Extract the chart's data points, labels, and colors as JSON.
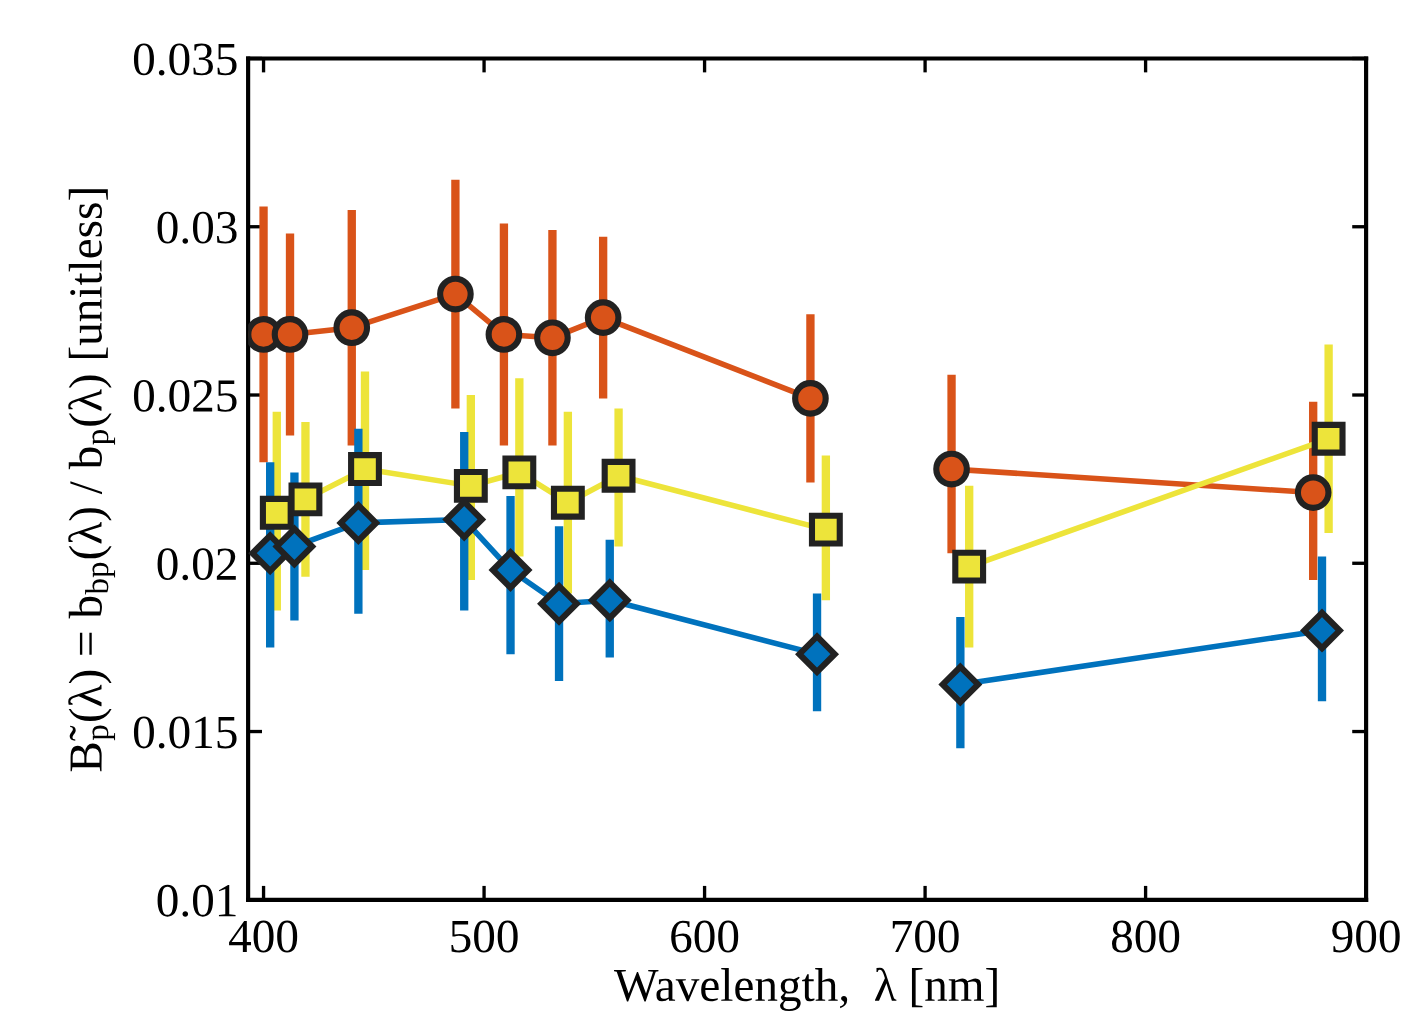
{
  "chart_data": {
    "type": "line",
    "xlabel": "Wavelength,  λ [nm]",
    "ylabel": "B̃$_{p}$(λ) = b$_{bp}$(λ) / b$_{p}$(λ) [unitless]",
    "xlim": [
      393,
      900
    ],
    "xticks": [
      400,
      500,
      600,
      700,
      800,
      900
    ],
    "ylim": [
      0.01,
      0.035
    ],
    "yticks": [
      0.01,
      0.015,
      0.02,
      0.025,
      0.03,
      0.035
    ],
    "grid": false,
    "legend": false,
    "line_style": "solid",
    "series": [
      {
        "color": "#d95319",
        "marker": "circle",
        "x": [
          400,
          412,
          440,
          487,
          509,
          531,
          554,
          648,
          680,
          712,
          876
        ],
        "values": [
          0.0268,
          0.0268,
          0.027,
          0.028,
          0.0268,
          0.0267,
          0.0273,
          0.0249,
          null,
          0.0228,
          0.0221
        ],
        "errors": [
          [
            0.023,
            0.0306
          ],
          [
            0.0238,
            0.0298
          ],
          [
            0.0235,
            0.0305
          ],
          [
            0.0246,
            0.0314
          ],
          [
            0.0235,
            0.0301
          ],
          [
            0.0235,
            0.0299
          ],
          [
            0.0249,
            0.0297
          ],
          [
            0.0224,
            0.0274
          ],
          null,
          [
            0.0203,
            0.0256
          ],
          [
            0.0195,
            0.0248
          ]
        ]
      },
      {
        "color": "#ede43a",
        "marker": "square",
        "x": [
          406,
          419,
          446,
          494,
          516,
          538,
          561,
          655,
          688,
          720,
          883
        ],
        "values": [
          0.0215,
          0.0219,
          0.0228,
          0.0223,
          0.0227,
          0.0218,
          0.0226,
          0.021,
          null,
          0.0199,
          0.0237
        ],
        "errors": [
          [
            0.0186,
            0.0245
          ],
          [
            0.0196,
            0.0242
          ],
          [
            0.0198,
            0.0257
          ],
          [
            0.0195,
            0.025
          ],
          [
            0.0202,
            0.0255
          ],
          [
            0.0191,
            0.0245
          ],
          [
            0.0205,
            0.0246
          ],
          [
            0.0189,
            0.0232
          ],
          null,
          [
            0.0175,
            0.0223
          ],
          [
            0.0209,
            0.0265
          ]
        ]
      },
      {
        "color": "#0072bd",
        "marker": "diamond",
        "x": [
          403,
          414,
          443,
          491,
          512,
          534,
          557,
          651,
          684,
          716,
          880
        ],
        "values": [
          0.0203,
          0.0205,
          0.0212,
          0.0213,
          0.0198,
          0.0188,
          0.0189,
          0.0173,
          null,
          0.0164,
          0.018
        ],
        "errors": [
          [
            0.0175,
            0.023
          ],
          [
            0.0183,
            0.0227
          ],
          [
            0.0185,
            0.024
          ],
          [
            0.0186,
            0.0239
          ],
          [
            0.0173,
            0.022
          ],
          [
            0.0165,
            0.0211
          ],
          [
            0.0172,
            0.0207
          ],
          [
            0.0156,
            0.0191
          ],
          null,
          [
            0.0145,
            0.0184
          ],
          [
            0.0159,
            0.0202
          ]
        ]
      }
    ]
  }
}
